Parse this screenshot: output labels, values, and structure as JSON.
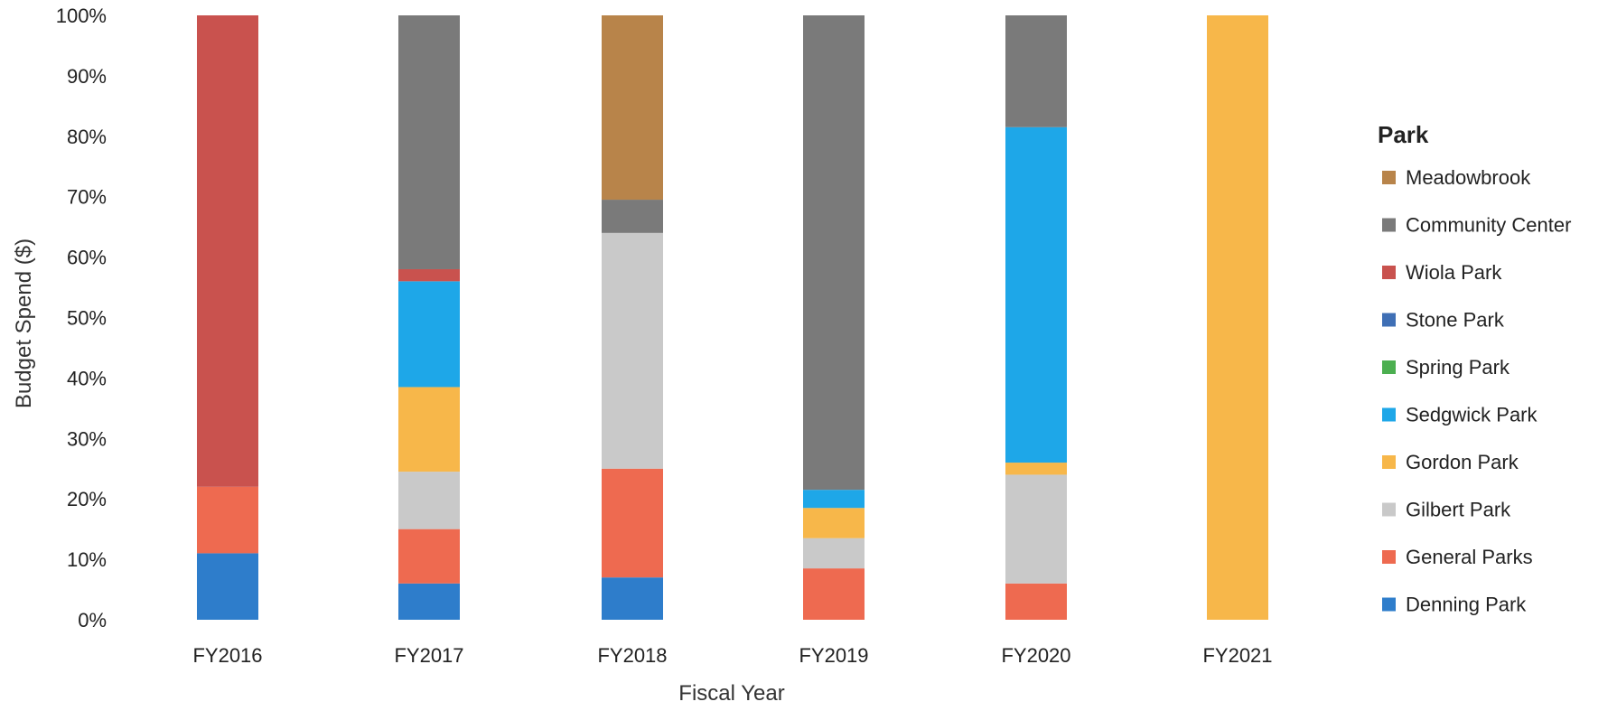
{
  "chart_data": {
    "type": "bar",
    "stacked": true,
    "normalized": true,
    "title": "",
    "xlabel": "Fiscal Year",
    "ylabel": "Budget Spend ($)",
    "ylim": [
      0,
      100
    ],
    "yticks": [
      "0%",
      "10%",
      "20%",
      "30%",
      "40%",
      "50%",
      "60%",
      "70%",
      "80%",
      "90%",
      "100%"
    ],
    "categories": [
      "FY2016",
      "FY2017",
      "FY2018",
      "FY2019",
      "FY2020",
      "FY2021"
    ],
    "legend_title": "Park",
    "legend_position": "right",
    "grid": false,
    "series": [
      {
        "name": "Denning Park",
        "color": "#2E7DCB",
        "values": [
          11,
          6,
          7,
          0,
          0,
          0
        ]
      },
      {
        "name": "General Parks",
        "color": "#EE6A50",
        "values": [
          11,
          9,
          18,
          8.5,
          6,
          0
        ]
      },
      {
        "name": "Gilbert Park",
        "color": "#C9C9C9",
        "values": [
          0,
          9.5,
          39,
          5,
          18,
          0
        ]
      },
      {
        "name": "Gordon Park",
        "color": "#F7B74A",
        "values": [
          0,
          14,
          0,
          5,
          2,
          100
        ]
      },
      {
        "name": "Sedgwick Park",
        "color": "#1EA7E8",
        "values": [
          0,
          17.5,
          0,
          3,
          55.5,
          0
        ]
      },
      {
        "name": "Spring Park",
        "color": "#4CAF50",
        "values": [
          0,
          0,
          0,
          0,
          0,
          0
        ]
      },
      {
        "name": "Stone Park",
        "color": "#3F6FB5",
        "values": [
          0,
          0,
          0,
          0,
          0,
          0
        ]
      },
      {
        "name": "Wiola Park",
        "color": "#C9524E",
        "values": [
          78,
          2,
          0,
          0,
          0,
          0
        ]
      },
      {
        "name": "Community Center",
        "color": "#7A7A7A",
        "values": [
          0,
          42,
          5.5,
          78.5,
          18.5,
          0
        ]
      },
      {
        "name": "Meadowbrook",
        "color": "#B8844A",
        "values": [
          0,
          0,
          30.5,
          0,
          0,
          0
        ]
      }
    ],
    "legend_order": [
      "Meadowbrook",
      "Community Center",
      "Wiola Park",
      "Stone Park",
      "Spring Park",
      "Sedgwick Park",
      "Gordon Park",
      "Gilbert Park",
      "General Parks",
      "Denning Park"
    ]
  }
}
